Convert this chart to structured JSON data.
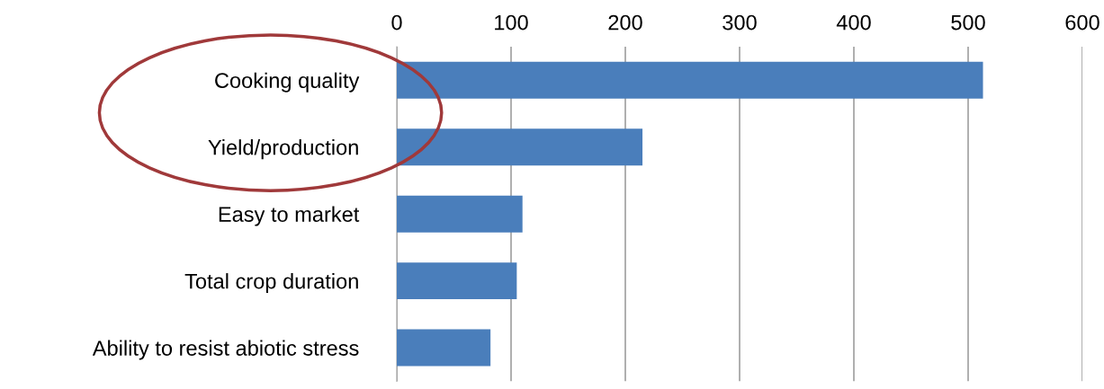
{
  "chart_data": {
    "type": "bar",
    "orientation": "horizontal",
    "categories": [
      "Cooking quality",
      "Yield/production",
      "Easy to market",
      "Total crop duration",
      "Ability to resist abiotic stress"
    ],
    "values": [
      513,
      215,
      110,
      105,
      82
    ],
    "color": "#4a7ebb",
    "xlim": [
      0,
      600
    ],
    "xticks": [
      0,
      100,
      200,
      300,
      400,
      500,
      600
    ],
    "grid": "x",
    "legend": false
  }
}
